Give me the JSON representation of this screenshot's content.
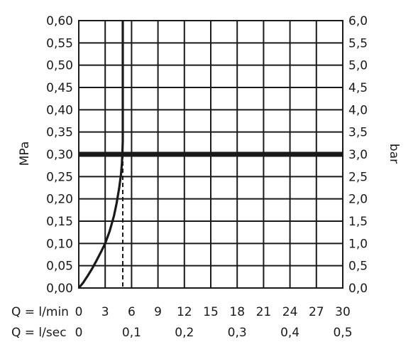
{
  "chart_data": {
    "type": "line",
    "title": "",
    "ylabel_left": "MPa",
    "ylabel_right": "bar",
    "xlabel_lpm": "Q = l/min",
    "xlabel_lps": "Q = l/sec",
    "xlim": [
      0,
      30
    ],
    "ylim": [
      0,
      0.6
    ],
    "ylim_right": [
      0,
      6
    ],
    "grid": true,
    "x_ticks_lpm": [
      "0",
      "3",
      "6",
      "9",
      "12",
      "15",
      "18",
      "21",
      "24",
      "27",
      "30"
    ],
    "x_ticks_lps": [
      "0",
      "0,1",
      "0,2",
      "0,3",
      "0,4",
      "0,5"
    ],
    "x_ticks_lps_values": [
      0,
      6,
      12,
      18,
      24,
      30
    ],
    "y_ticks_left": [
      "0,00",
      "0,05",
      "0,10",
      "0,15",
      "0,20",
      "0,25",
      "0,30",
      "0,35",
      "0,40",
      "0,45",
      "0,50",
      "0,55",
      "0,60"
    ],
    "y_ticks_right": [
      "0,0",
      "0,5",
      "1,0",
      "1,5",
      "2,0",
      "2,5",
      "3,0",
      "3,5",
      "4,0",
      "4,5",
      "5,0",
      "5,5",
      "6,0"
    ],
    "series": [
      {
        "x": [
          0,
          0.5,
          1.0,
          1.5,
          2.0,
          2.5,
          3.0,
          3.5,
          4.0,
          4.3,
          4.6,
          4.8,
          4.9,
          4.95,
          5.0,
          5.0,
          5.0
        ],
        "y": [
          0,
          0.012,
          0.027,
          0.043,
          0.061,
          0.08,
          0.1,
          0.127,
          0.162,
          0.19,
          0.225,
          0.255,
          0.28,
          0.3,
          0.33,
          0.45,
          0.6
        ]
      }
    ],
    "reference_line": {
      "y": 0.3
    },
    "marker_line": {
      "x": 5.0,
      "y": 0.3
    }
  }
}
